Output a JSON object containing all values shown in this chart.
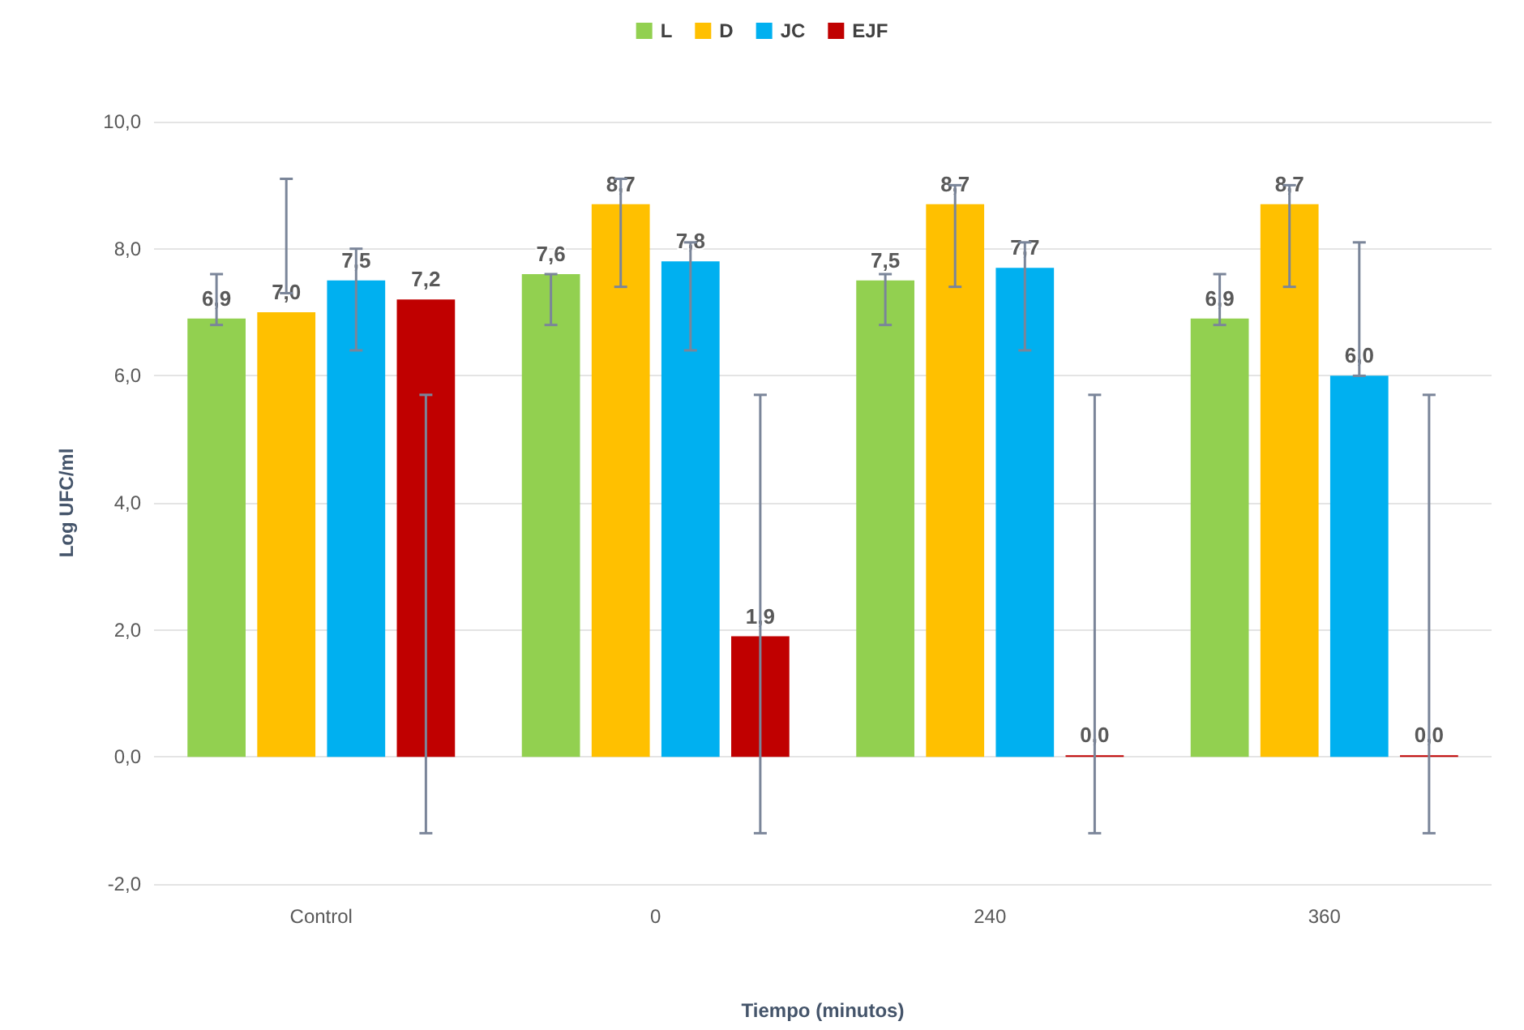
{
  "chart_data": {
    "type": "bar",
    "xlabel": "Tiempo (minutos)",
    "ylabel": "Log UFC/ml",
    "categories": [
      "Control",
      "0",
      "240",
      "360"
    ],
    "series": [
      {
        "name": "L",
        "color": "#92d050",
        "values": [
          6.9,
          7.6,
          7.5,
          6.9
        ],
        "value_labels": [
          "6,9",
          "7,6",
          "7,5",
          "6,9"
        ],
        "errors": [
          [
            6.8,
            7.6
          ],
          [
            6.8,
            7.6
          ],
          [
            6.8,
            7.6
          ],
          [
            6.8,
            7.6
          ]
        ]
      },
      {
        "name": "D",
        "color": "#ffc000",
        "values": [
          7.0,
          8.7,
          8.7,
          8.7
        ],
        "value_labels": [
          "7,0",
          "8,7",
          "8,7",
          "8,7"
        ],
        "errors": [
          [
            7.3,
            9.1
          ],
          [
            7.4,
            9.1
          ],
          [
            7.4,
            9.0
          ],
          [
            7.4,
            9.0
          ]
        ]
      },
      {
        "name": "JC",
        "color": "#00b0f0",
        "values": [
          7.5,
          7.8,
          7.7,
          6.0
        ],
        "value_labels": [
          "7,5",
          "7,8",
          "7,7",
          "6,0"
        ],
        "errors": [
          [
            6.4,
            8.0
          ],
          [
            6.4,
            8.1
          ],
          [
            6.4,
            8.1
          ],
          [
            6.0,
            8.1
          ]
        ]
      },
      {
        "name": "EJF",
        "color": "#c00000",
        "values": [
          7.2,
          1.9,
          0.0,
          0.0
        ],
        "value_labels": [
          "7,2",
          "1,9",
          "0,0",
          "0,0"
        ],
        "errors": [
          [
            -1.2,
            5.7
          ],
          [
            -1.2,
            5.7
          ],
          [
            -1.2,
            5.7
          ],
          [
            -1.2,
            5.7
          ]
        ]
      }
    ],
    "ylim": [
      -2,
      10
    ],
    "yticks": [
      {
        "value": -2,
        "label": "-2,0"
      },
      {
        "value": 0,
        "label": "0,0"
      },
      {
        "value": 2,
        "label": "2,0"
      },
      {
        "value": 4,
        "label": "4,0"
      },
      {
        "value": 6,
        "label": "6,0"
      },
      {
        "value": 8,
        "label": "8,0"
      },
      {
        "value": 10,
        "label": "10,0"
      }
    ],
    "grid": "y",
    "legend": "top"
  }
}
